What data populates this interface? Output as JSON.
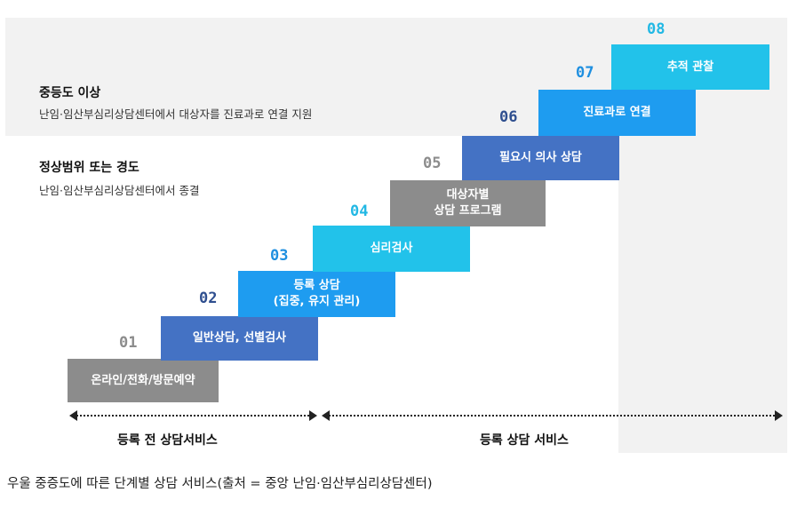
{
  "legend": {
    "moderate": {
      "title": "중등도 이상",
      "desc": "난임·임산부심리상담센터에서 대상자를 진료과로 연결 지원"
    },
    "normal": {
      "title": "정상범위 또는 경도",
      "desc": "난임·임산부심리상담센터에서 종결"
    }
  },
  "steps": [
    {
      "num": "01",
      "lines": [
        "온라인/전화/방문예약"
      ],
      "box_color": "#8c8c8c",
      "num_color": "#8c8c8c"
    },
    {
      "num": "02",
      "lines": [
        "일반상담, 선별검사"
      ],
      "box_color": "#4472c4",
      "num_color": "#2f4f8f"
    },
    {
      "num": "03",
      "lines": [
        "등록 상담",
        "(집중, 유지 관리)"
      ],
      "box_color": "#1e9cf0",
      "num_color": "#1e8fe0"
    },
    {
      "num": "04",
      "lines": [
        "심리검사"
      ],
      "box_color": "#22c2ea",
      "num_color": "#22b8e4"
    },
    {
      "num": "05",
      "lines": [
        "대상자별",
        "상담 프로그램"
      ],
      "box_color": "#8c8c8c",
      "num_color": "#8c8c8c"
    },
    {
      "num": "06",
      "lines": [
        "필요시 의사 상담"
      ],
      "box_color": "#4472c4",
      "num_color": "#2f4f8f"
    },
    {
      "num": "07",
      "lines": [
        "진료과로 연결"
      ],
      "box_color": "#1e9cf0",
      "num_color": "#1e8fe0"
    },
    {
      "num": "08",
      "lines": [
        "추적 관찰"
      ],
      "box_color": "#22c2ea",
      "num_color": "#22b8e4"
    }
  ],
  "phases": {
    "pre": "등록 전 상담서비스",
    "registered": "등록 상담 서비스"
  },
  "caption": "우울 중증도에 따른 단계별 상담 서비스(출처 = 중앙 난임·임산부심리상담센터)"
}
